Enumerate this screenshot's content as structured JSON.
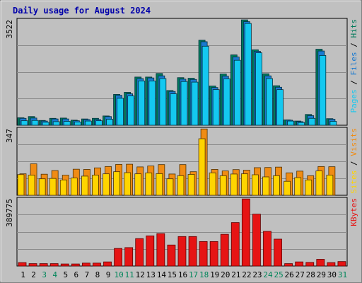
{
  "title": "Daily usage for August 2024",
  "colors": {
    "background": "#c0c0c0",
    "title": "#0000aa",
    "hits": "#007a5a",
    "files": "#1a7ad0",
    "pages": "#14c8f0",
    "visits": "#f08c14",
    "sites": "#ffd400",
    "kbytes": "#e61414",
    "weekend_label": "#00865a",
    "weekday_label": "#000000",
    "separator": "#000000"
  },
  "chart_data": [
    {
      "type": "bar",
      "title": "Daily usage for August 2024",
      "panel": "hits-files-pages",
      "ymax_label": "3522",
      "ylim": [
        0,
        3522
      ],
      "legend": [
        "Pages",
        "Files",
        "Hits"
      ],
      "legend_placement": "right (vertical)",
      "categories": [
        "1",
        "2",
        "3",
        "4",
        "5",
        "6",
        "7",
        "8",
        "9",
        "10",
        "11",
        "12",
        "13",
        "14",
        "15",
        "16",
        "17",
        "18",
        "19",
        "20",
        "21",
        "22",
        "23",
        "24",
        "25",
        "26",
        "27",
        "28",
        "29",
        "30",
        "31"
      ],
      "series": [
        {
          "name": "Hits",
          "values": [
            250,
            290,
            160,
            230,
            240,
            170,
            210,
            230,
            310,
            1030,
            1100,
            1610,
            1610,
            1730,
            1160,
            1590,
            1570,
            2840,
            1310,
            1710,
            2350,
            3520,
            2520,
            1720,
            1320,
            180,
            140,
            360,
            2540,
            220,
            0
          ]
        },
        {
          "name": "Files",
          "values": [
            230,
            240,
            140,
            210,
            210,
            150,
            190,
            190,
            290,
            1000,
            1050,
            1560,
            1580,
            1650,
            1130,
            1540,
            1530,
            2790,
            1260,
            1640,
            2280,
            3460,
            2470,
            1650,
            1270,
            170,
            120,
            320,
            2480,
            200,
            0
          ]
        },
        {
          "name": "Pages",
          "values": [
            150,
            160,
            100,
            120,
            130,
            110,
            140,
            150,
            200,
            900,
            980,
            1480,
            1480,
            1560,
            1050,
            1460,
            1440,
            2640,
            1190,
            1550,
            2170,
            3400,
            2420,
            1560,
            1190,
            140,
            90,
            230,
            2330,
            130,
            0
          ]
        }
      ],
      "grid": true
    },
    {
      "type": "bar",
      "panel": "visits-sites",
      "ymax_label": "347",
      "ylim": [
        0,
        347
      ],
      "legend": [
        "Sites",
        "Visits"
      ],
      "legend_placement": "right (vertical)",
      "categories": [
        "1",
        "2",
        "3",
        "4",
        "5",
        "6",
        "7",
        "8",
        "9",
        "10",
        "11",
        "12",
        "13",
        "14",
        "15",
        "16",
        "17",
        "18",
        "19",
        "20",
        "21",
        "22",
        "23",
        "24",
        "25",
        "26",
        "27",
        "28",
        "29",
        "30",
        "31"
      ],
      "series": [
        {
          "name": "Visits",
          "values": [
            112,
            164,
            110,
            129,
            105,
            136,
            135,
            143,
            150,
            161,
            162,
            148,
            153,
            160,
            111,
            160,
            123,
            346,
            135,
            127,
            134,
            131,
            144,
            145,
            147,
            117,
            126,
            102,
            150,
            149,
            0
          ]
        },
        {
          "name": "Sites",
          "values": [
            108,
            105,
            86,
            88,
            80,
            90,
            100,
            105,
            112,
            123,
            118,
            112,
            117,
            113,
            86,
            102,
            109,
            295,
            117,
            102,
            111,
            112,
            107,
            96,
            102,
            73,
            92,
            80,
            127,
            105,
            0
          ]
        }
      ],
      "grid": true
    },
    {
      "type": "bar",
      "panel": "kbytes",
      "ymax_label": "389775",
      "ylim": [
        0,
        389775
      ],
      "legend": [
        "KBytes"
      ],
      "legend_placement": "right (vertical)",
      "categories": [
        "1",
        "2",
        "3",
        "4",
        "5",
        "6",
        "7",
        "8",
        "9",
        "10",
        "11",
        "12",
        "13",
        "14",
        "15",
        "16",
        "17",
        "18",
        "19",
        "20",
        "21",
        "22",
        "23",
        "24",
        "25",
        "26",
        "27",
        "28",
        "29",
        "30",
        "31"
      ],
      "series": [
        {
          "name": "KBytes",
          "values": [
            20000,
            14000,
            14000,
            14000,
            12000,
            12000,
            17000,
            17000,
            24000,
            102000,
            107000,
            159000,
            175000,
            188000,
            122000,
            171000,
            171000,
            142000,
            142000,
            184000,
            252000,
            389000,
            301000,
            201000,
            156000,
            14000,
            24000,
            21000,
            39000,
            20000,
            26000
          ]
        }
      ],
      "grid": true
    }
  ],
  "x_labels": [
    "1",
    "2",
    "3",
    "4",
    "5",
    "6",
    "7",
    "8",
    "9",
    "10",
    "11",
    "12",
    "13",
    "14",
    "15",
    "16",
    "17",
    "18",
    "19",
    "20",
    "21",
    "22",
    "23",
    "24",
    "25",
    "26",
    "27",
    "28",
    "29",
    "30",
    "31"
  ],
  "weekend_days": [
    3,
    4,
    10,
    11,
    17,
    18,
    24,
    25,
    31
  ],
  "legends": {
    "panel1": [
      {
        "text": "Pages",
        "color_key": "pages"
      },
      {
        "text": "/",
        "color_key": "separator"
      },
      {
        "text": "Files",
        "color_key": "files"
      },
      {
        "text": "/",
        "color_key": "separator"
      },
      {
        "text": "Hits",
        "color_key": "hits"
      }
    ],
    "panel2": [
      {
        "text": "Sites",
        "color_key": "sites"
      },
      {
        "text": "/",
        "color_key": "separator"
      },
      {
        "text": "Visits",
        "color_key": "visits"
      }
    ],
    "panel3": [
      {
        "text": "KBytes",
        "color_key": "kbytes"
      }
    ]
  }
}
